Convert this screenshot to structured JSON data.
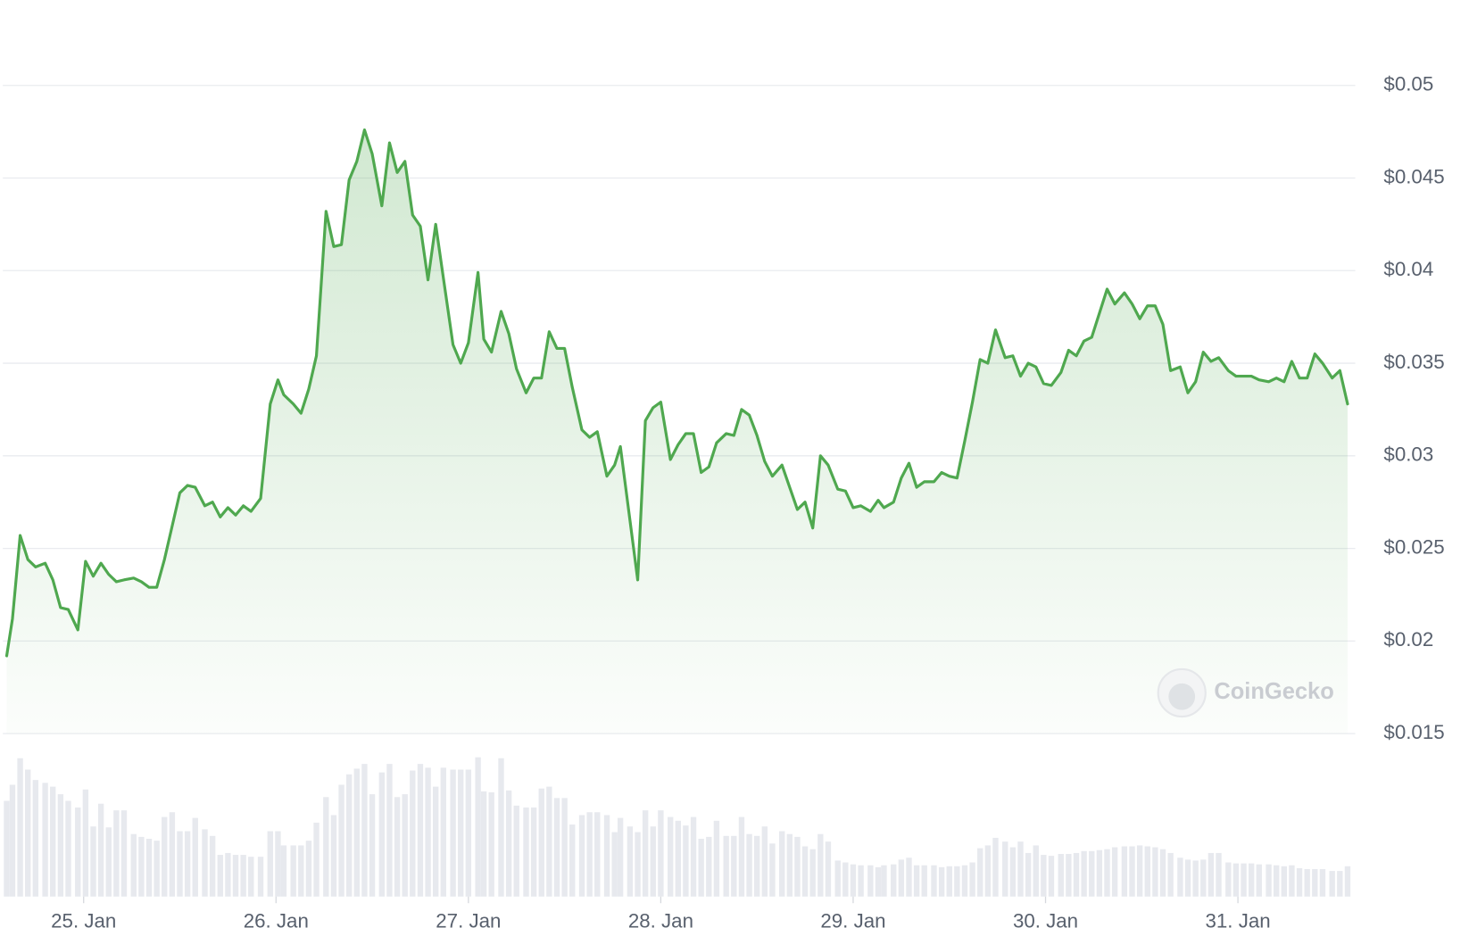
{
  "chart_data": {
    "type": "line",
    "color": "#4fa84f",
    "volume_color": "#e7e9ee",
    "watermark": "CoinGecko",
    "grid": true,
    "xlim": [
      24.58,
      31.61
    ],
    "ylim": [
      0.015,
      0.05
    ],
    "xticks": [
      {
        "value": 25,
        "label": "25. Jan"
      },
      {
        "value": 26,
        "label": "26. Jan"
      },
      {
        "value": 27,
        "label": "27. Jan"
      },
      {
        "value": 28,
        "label": "28. Jan"
      },
      {
        "value": 29,
        "label": "29. Jan"
      },
      {
        "value": 30,
        "label": "30. Jan"
      },
      {
        "value": 31,
        "label": "31. Jan"
      }
    ],
    "yticks": [
      {
        "value": 0.015,
        "label": "$0.015"
      },
      {
        "value": 0.02,
        "label": "$0.02"
      },
      {
        "value": 0.025,
        "label": "$0.025"
      },
      {
        "value": 0.03,
        "label": "$0.03"
      },
      {
        "value": 0.035,
        "label": "$0.035"
      },
      {
        "value": 0.04,
        "label": "$0.04"
      },
      {
        "value": 0.045,
        "label": "$0.045"
      },
      {
        "value": 0.05,
        "label": "$0.05"
      }
    ],
    "x": [
      24.6,
      24.63,
      24.67,
      24.71,
      24.75,
      24.8,
      24.84,
      24.88,
      24.92,
      24.97,
      25.01,
      25.05,
      25.09,
      25.13,
      25.17,
      25.21,
      25.26,
      25.3,
      25.34,
      25.38,
      25.42,
      25.46,
      25.5,
      25.54,
      25.58,
      25.63,
      25.67,
      25.71,
      25.75,
      25.79,
      25.83,
      25.87,
      25.92,
      25.97,
      26.01,
      26.04,
      26.09,
      26.13,
      26.17,
      26.21,
      26.26,
      26.3,
      26.34,
      26.38,
      26.42,
      26.46,
      26.5,
      26.55,
      26.59,
      26.63,
      26.67,
      26.71,
      26.75,
      26.79,
      26.83,
      26.87,
      26.92,
      26.96,
      27.0,
      27.05,
      27.08,
      27.12,
      27.17,
      27.21,
      27.25,
      27.3,
      27.34,
      27.38,
      27.42,
      27.46,
      27.5,
      27.54,
      27.59,
      27.63,
      27.67,
      27.72,
      27.76,
      27.79,
      27.84,
      27.88,
      27.92,
      27.96,
      28.0,
      28.05,
      28.09,
      28.13,
      28.17,
      28.21,
      28.25,
      28.29,
      28.34,
      28.38,
      28.42,
      28.46,
      28.5,
      28.54,
      28.58,
      28.63,
      28.67,
      28.71,
      28.75,
      28.79,
      28.83,
      28.87,
      28.92,
      28.96,
      29.0,
      29.04,
      29.09,
      29.13,
      29.16,
      29.21,
      29.25,
      29.29,
      29.33,
      29.37,
      29.42,
      29.46,
      29.5,
      29.54,
      29.58,
      29.62,
      29.66,
      29.7,
      29.74,
      29.79,
      29.83,
      29.87,
      29.91,
      29.95,
      29.99,
      30.03,
      30.08,
      30.12,
      30.16,
      30.2,
      30.24,
      30.28,
      30.32,
      30.36,
      30.41,
      30.45,
      30.49,
      30.53,
      30.57,
      30.61,
      30.65,
      30.7,
      30.74,
      30.78,
      30.82,
      30.86,
      30.9,
      30.95,
      30.99,
      31.03,
      31.07,
      31.11,
      31.16,
      31.2,
      31.24,
      31.28,
      31.32,
      31.36,
      31.4,
      31.44,
      31.49,
      31.53,
      31.57
    ],
    "values": [
      0.0192,
      0.0212,
      0.0257,
      0.0244,
      0.024,
      0.0242,
      0.0233,
      0.0218,
      0.0217,
      0.0206,
      0.0243,
      0.0235,
      0.0242,
      0.0236,
      0.0232,
      0.0233,
      0.0234,
      0.0232,
      0.0229,
      0.0229,
      0.0244,
      0.0262,
      0.028,
      0.0284,
      0.0283,
      0.0273,
      0.0275,
      0.0267,
      0.0272,
      0.0268,
      0.0273,
      0.027,
      0.0277,
      0.0328,
      0.0341,
      0.0333,
      0.0328,
      0.0323,
      0.0336,
      0.0354,
      0.0432,
      0.0413,
      0.0414,
      0.0449,
      0.0459,
      0.0476,
      0.0463,
      0.0435,
      0.0469,
      0.0453,
      0.0459,
      0.043,
      0.0424,
      0.0395,
      0.0425,
      0.0396,
      0.036,
      0.035,
      0.0361,
      0.0399,
      0.0363,
      0.0356,
      0.0378,
      0.0366,
      0.0347,
      0.0334,
      0.0342,
      0.0342,
      0.0367,
      0.0358,
      0.0358,
      0.0337,
      0.0314,
      0.031,
      0.0313,
      0.0289,
      0.0295,
      0.0305,
      0.0265,
      0.0233,
      0.0319,
      0.0326,
      0.0329,
      0.0298,
      0.0306,
      0.0312,
      0.0312,
      0.0291,
      0.0294,
      0.0307,
      0.0312,
      0.0311,
      0.0325,
      0.0322,
      0.0311,
      0.0297,
      0.0289,
      0.0295,
      0.0283,
      0.0271,
      0.0275,
      0.0261,
      0.03,
      0.0295,
      0.0282,
      0.0281,
      0.0272,
      0.0273,
      0.027,
      0.0276,
      0.0272,
      0.0275,
      0.0288,
      0.0296,
      0.0283,
      0.0286,
      0.0286,
      0.0291,
      0.0289,
      0.0288,
      0.0308,
      0.0329,
      0.0352,
      0.035,
      0.0368,
      0.0353,
      0.0354,
      0.0343,
      0.035,
      0.0348,
      0.0339,
      0.0338,
      0.0345,
      0.0357,
      0.0354,
      0.0362,
      0.0364,
      0.0377,
      0.039,
      0.0382,
      0.0388,
      0.0382,
      0.0374,
      0.0381,
      0.0381,
      0.0371,
      0.0346,
      0.0348,
      0.0334,
      0.034,
      0.0356,
      0.0351,
      0.0353,
      0.0346,
      0.0343,
      0.0343,
      0.0343,
      0.0341,
      0.034,
      0.0342,
      0.034,
      0.0351,
      0.0342,
      0.0342,
      0.0355,
      0.035,
      0.0342,
      0.0346,
      0.0328
    ],
    "volume": [
      101,
      118,
      146,
      134,
      123,
      120,
      116,
      108,
      101,
      94,
      113,
      74,
      98,
      73,
      91,
      91,
      66,
      63,
      61,
      59,
      84,
      89,
      69,
      69,
      83,
      71,
      64,
      44,
      46,
      44,
      44,
      42,
      42,
      69,
      69,
      54,
      54,
      54,
      59,
      78,
      105,
      86,
      118,
      129,
      135,
      140,
      108,
      131,
      140,
      105,
      108,
      133,
      140,
      136,
      116,
      136,
      134,
      134,
      134,
      147,
      111,
      110,
      146,
      112,
      96,
      94,
      94,
      114,
      116,
      104,
      104,
      76,
      86,
      89,
      89,
      86,
      68,
      83,
      74,
      68,
      91,
      74,
      91,
      84,
      80,
      75,
      84,
      61,
      63,
      80,
      64,
      64,
      84,
      66,
      64,
      74,
      56,
      69,
      66,
      63,
      53,
      50,
      66,
      58,
      38,
      36,
      34,
      33,
      33,
      31,
      33,
      34,
      39,
      41,
      33,
      33,
      33,
      31,
      32,
      32,
      33,
      36,
      51,
      54,
      62,
      58,
      52,
      58,
      46,
      54,
      44,
      43,
      45,
      45,
      46,
      48,
      48,
      49,
      50,
      52,
      53,
      53,
      54,
      53,
      52,
      50,
      46,
      41,
      39,
      38,
      39,
      46,
      46,
      36,
      35,
      35,
      35,
      34,
      34,
      33,
      32,
      33,
      30,
      29,
      29,
      29,
      27,
      27,
      32
    ]
  }
}
